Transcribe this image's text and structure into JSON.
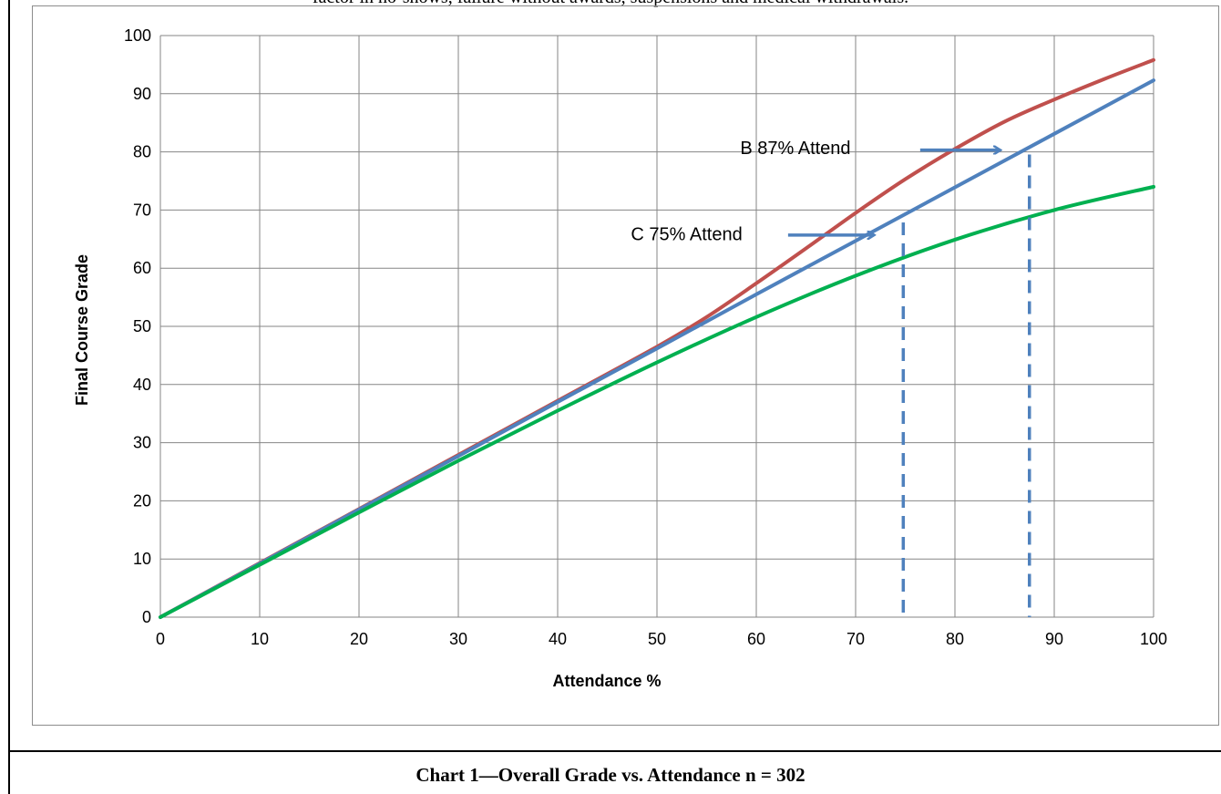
{
  "header_text": "factor in no-shows, failure without awards, suspensions and medical withdrawals.",
  "caption": "Chart 1—Overall Grade vs. Attendance n = 302",
  "chart_data": {
    "type": "line",
    "title": "",
    "xlabel": "Attendance %",
    "ylabel": "Final Course Grade",
    "xlim": [
      0,
      100
    ],
    "ylim": [
      0,
      100
    ],
    "xticks": [
      0,
      10,
      20,
      30,
      40,
      50,
      60,
      70,
      80,
      90,
      100
    ],
    "yticks": [
      0,
      10,
      20,
      30,
      40,
      50,
      60,
      70,
      80,
      90,
      100
    ],
    "grid": true,
    "legend": "none",
    "series": [
      {
        "color": "#c0504d",
        "x": [
          0,
          10,
          20,
          30,
          40,
          50,
          55,
          60,
          65,
          70,
          75,
          80,
          85,
          90,
          95,
          100
        ],
        "y": [
          0,
          9.3,
          18.6,
          27.9,
          37.2,
          46.5,
          51.6,
          57.4,
          63.4,
          69.5,
          75.3,
          80.5,
          85.2,
          89.0,
          92.5,
          95.8
        ]
      },
      {
        "color": "#4f81bd",
        "x": [
          0,
          10,
          20,
          30,
          40,
          50,
          60,
          70,
          80,
          90,
          100
        ],
        "y": [
          0,
          9.2,
          18.5,
          27.7,
          37.0,
          46.2,
          55.5,
          64.7,
          73.9,
          83.1,
          92.3
        ]
      },
      {
        "color": "#00b050",
        "x": [
          0,
          10,
          20,
          30,
          40,
          50,
          60,
          70,
          80,
          90,
          100
        ],
        "y": [
          0,
          9.0,
          18.0,
          26.9,
          35.5,
          43.8,
          51.6,
          58.7,
          64.9,
          70.0,
          74.0
        ]
      }
    ],
    "annotations": [
      {
        "text": "B 87% Attend",
        "color": "#000000"
      },
      {
        "text": "C 75% Attend",
        "color": "#000000"
      }
    ],
    "reference_lines": [
      {
        "x": 87.5,
        "color": "#4f81bd",
        "style": "dashed"
      },
      {
        "x": 74.8,
        "color": "#4f81bd",
        "style": "dashed"
      }
    ]
  }
}
